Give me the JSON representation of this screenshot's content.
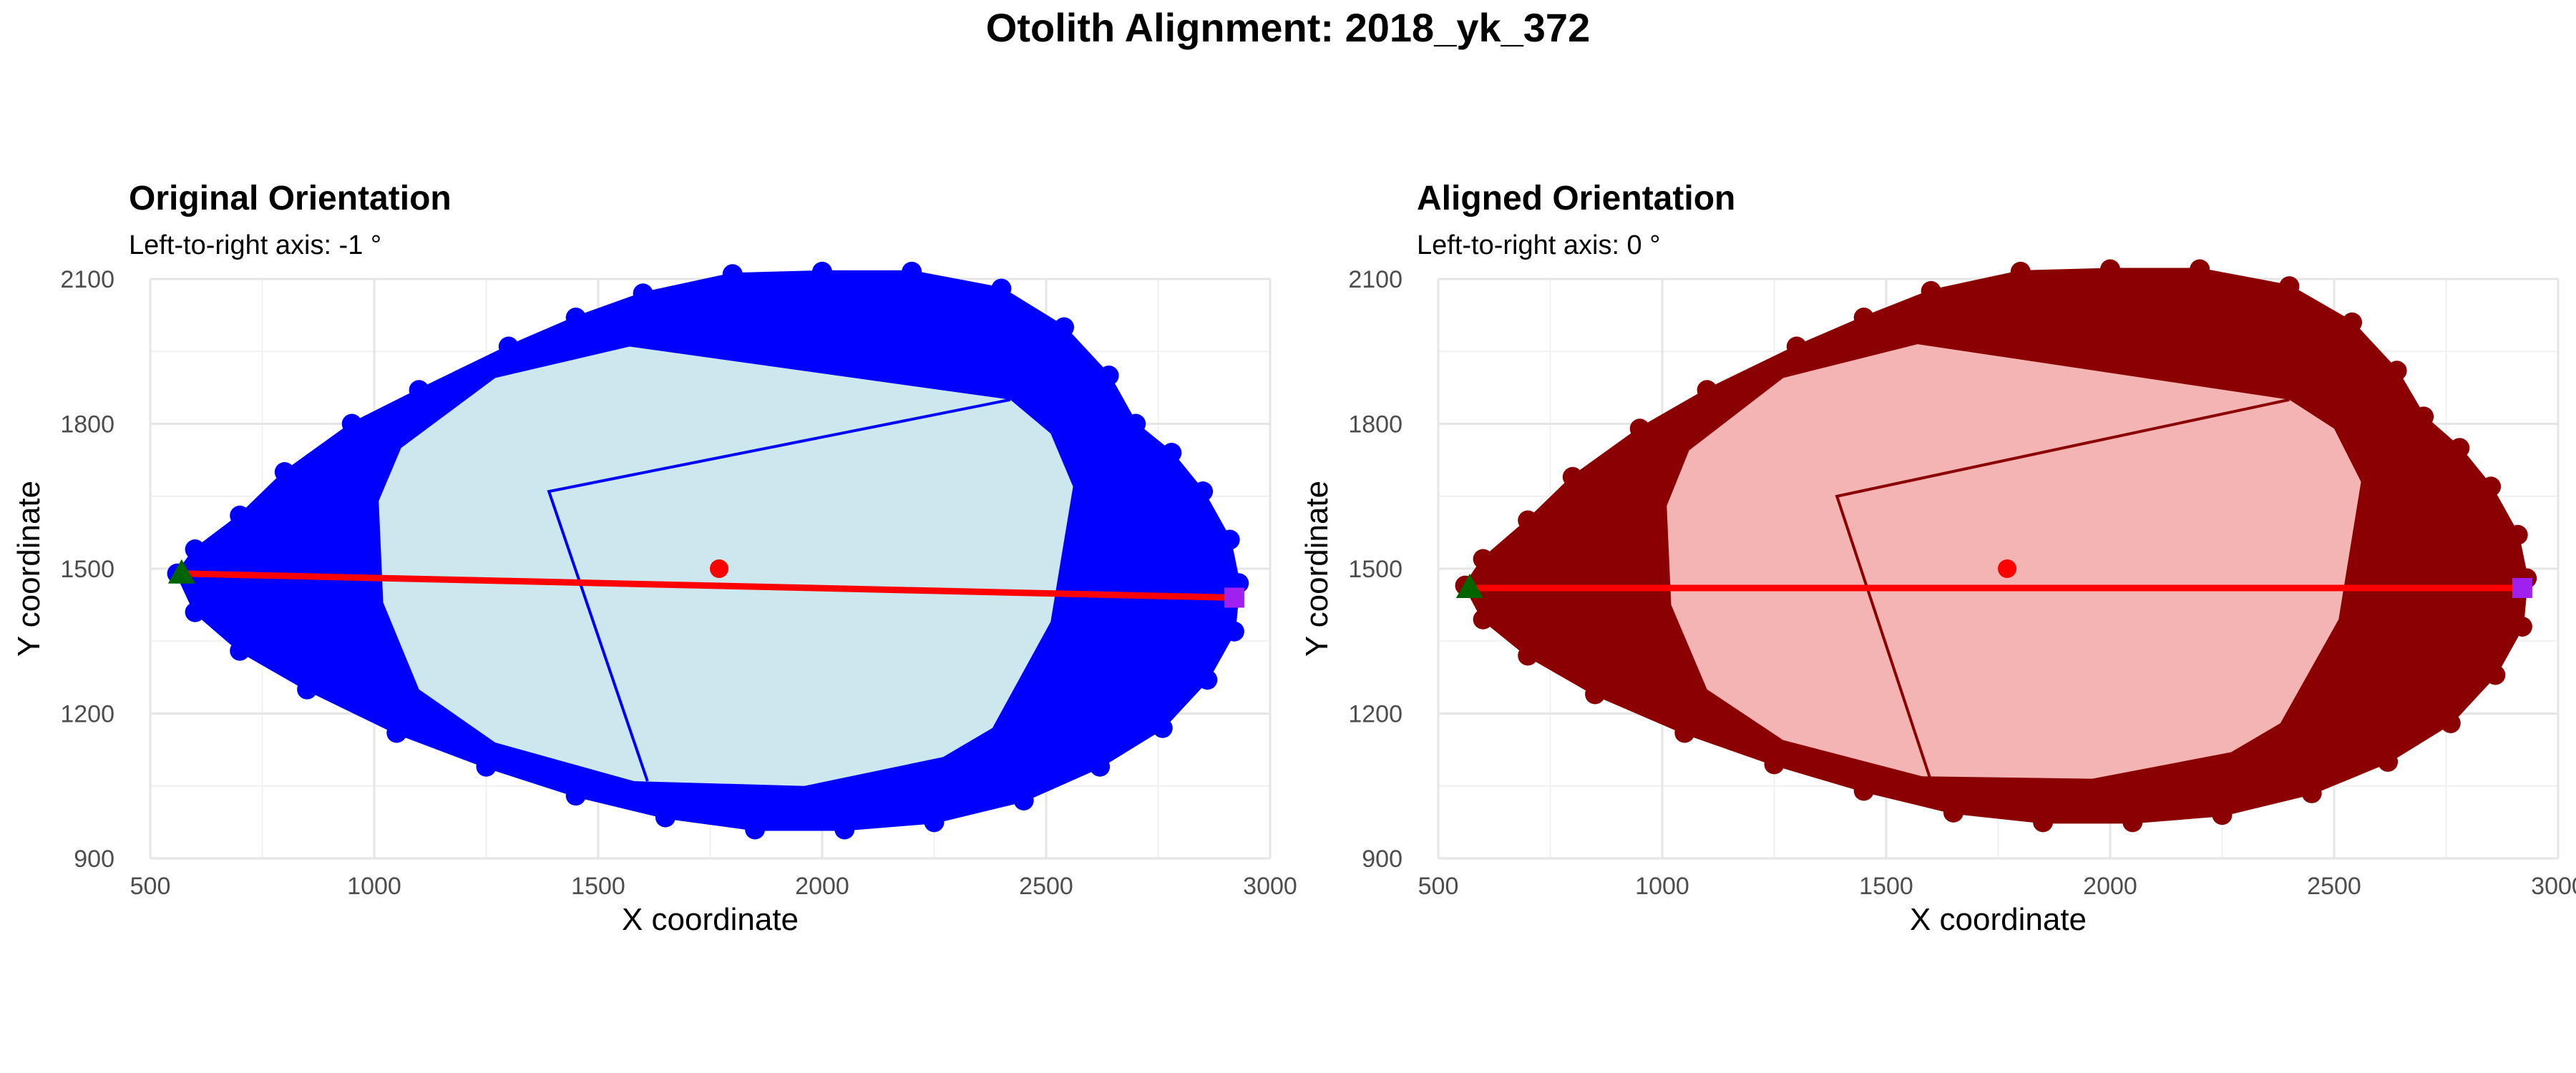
{
  "title": "Otolith Alignment: 2018_yk_372",
  "chart_data": [
    {
      "type": "scatter",
      "title": "Original Orientation",
      "subtitle": "Left-to-right axis: -1 °",
      "xlabel": "X coordinate",
      "ylabel": "Y coordinate",
      "xlim": [
        500,
        3000
      ],
      "ylim": [
        900,
        2100
      ],
      "x_ticks": [
        "500",
        "1000",
        "1500",
        "2000",
        "2500",
        "3000"
      ],
      "y_ticks": [
        "900",
        "1200",
        "1500",
        "1800",
        "2100"
      ],
      "grid": true,
      "colors": {
        "outline": "#0000ff",
        "fill": "#cde7ee",
        "inner_line": "#0000ff",
        "axis_line": "#ff0000",
        "centroid": "#ff0000",
        "left_marker": "#006400",
        "right_marker": "#a020f0"
      },
      "outer_shape": [
        [
          560,
          1490
        ],
        [
          600,
          1540
        ],
        [
          700,
          1610
        ],
        [
          800,
          1700
        ],
        [
          950,
          1800
        ],
        [
          1100,
          1870
        ],
        [
          1300,
          1960
        ],
        [
          1450,
          2020
        ],
        [
          1600,
          2070
        ],
        [
          1800,
          2110
        ],
        [
          2000,
          2115
        ],
        [
          2200,
          2115
        ],
        [
          2400,
          2080
        ],
        [
          2540,
          2000
        ],
        [
          2640,
          1900
        ],
        [
          2700,
          1800
        ],
        [
          2780,
          1740
        ],
        [
          2850,
          1660
        ],
        [
          2910,
          1560
        ],
        [
          2930,
          1470
        ],
        [
          2920,
          1370
        ],
        [
          2860,
          1270
        ],
        [
          2760,
          1170
        ],
        [
          2620,
          1090
        ],
        [
          2450,
          1020
        ],
        [
          2250,
          975
        ],
        [
          2050,
          960
        ],
        [
          1850,
          960
        ],
        [
          1650,
          985
        ],
        [
          1450,
          1030
        ],
        [
          1250,
          1090
        ],
        [
          1050,
          1160
        ],
        [
          850,
          1250
        ],
        [
          700,
          1330
        ],
        [
          600,
          1410
        ]
      ],
      "inner_shape": [
        [
          1010,
          1640
        ],
        [
          1060,
          1750
        ],
        [
          1270,
          1895
        ],
        [
          1570,
          1960
        ],
        [
          2420,
          1850
        ],
        [
          2510,
          1780
        ],
        [
          2560,
          1670
        ],
        [
          2510,
          1390
        ],
        [
          2380,
          1170
        ],
        [
          2270,
          1110
        ],
        [
          1960,
          1050
        ],
        [
          1580,
          1060
        ],
        [
          1270,
          1140
        ],
        [
          1100,
          1250
        ],
        [
          1020,
          1430
        ]
      ],
      "inner_line": [
        [
          1610,
          1060
        ],
        [
          1390,
          1660
        ],
        [
          2420,
          1850
        ]
      ],
      "axis_line": [
        [
          570,
          1490
        ],
        [
          2920,
          1440
        ]
      ],
      "centroid": [
        1770,
        1500
      ],
      "left_marker": [
        570,
        1490
      ],
      "right_marker": [
        2920,
        1440
      ]
    },
    {
      "type": "scatter",
      "title": "Aligned Orientation",
      "subtitle": "Left-to-right axis: 0 °",
      "xlabel": "X coordinate",
      "ylabel": "Y coordinate",
      "xlim": [
        500,
        3000
      ],
      "ylim": [
        900,
        2100
      ],
      "x_ticks": [
        "500",
        "1000",
        "1500",
        "2000",
        "2500",
        "3000"
      ],
      "y_ticks": [
        "900",
        "1200",
        "1500",
        "1800",
        "2100"
      ],
      "grid": true,
      "colors": {
        "outline": "#8b0000",
        "fill": "#f4b4b4",
        "inner_line": "#8b0000",
        "axis_line": "#ff0000",
        "centroid": "#ff0000",
        "left_marker": "#006400",
        "right_marker": "#a020f0"
      },
      "outer_shape": [
        [
          560,
          1465
        ],
        [
          600,
          1520
        ],
        [
          700,
          1600
        ],
        [
          800,
          1690
        ],
        [
          950,
          1790
        ],
        [
          1100,
          1870
        ],
        [
          1300,
          1960
        ],
        [
          1450,
          2020
        ],
        [
          1600,
          2075
        ],
        [
          1800,
          2115
        ],
        [
          2000,
          2120
        ],
        [
          2200,
          2120
        ],
        [
          2400,
          2085
        ],
        [
          2540,
          2010
        ],
        [
          2640,
          1910
        ],
        [
          2700,
          1815
        ],
        [
          2780,
          1750
        ],
        [
          2850,
          1670
        ],
        [
          2910,
          1570
        ],
        [
          2930,
          1480
        ],
        [
          2920,
          1380
        ],
        [
          2860,
          1280
        ],
        [
          2760,
          1180
        ],
        [
          2620,
          1100
        ],
        [
          2450,
          1035
        ],
        [
          2250,
          990
        ],
        [
          2050,
          975
        ],
        [
          1850,
          975
        ],
        [
          1650,
          995
        ],
        [
          1450,
          1040
        ],
        [
          1250,
          1095
        ],
        [
          1050,
          1160
        ],
        [
          850,
          1240
        ],
        [
          700,
          1320
        ],
        [
          600,
          1395
        ]
      ],
      "inner_shape": [
        [
          1010,
          1630
        ],
        [
          1060,
          1745
        ],
        [
          1270,
          1895
        ],
        [
          1570,
          1965
        ],
        [
          2400,
          1850
        ],
        [
          2500,
          1790
        ],
        [
          2560,
          1680
        ],
        [
          2510,
          1395
        ],
        [
          2380,
          1180
        ],
        [
          2270,
          1120
        ],
        [
          1960,
          1065
        ],
        [
          1580,
          1070
        ],
        [
          1270,
          1145
        ],
        [
          1100,
          1250
        ],
        [
          1020,
          1425
        ]
      ],
      "inner_line": [
        [
          1600,
          1060
        ],
        [
          1390,
          1650
        ],
        [
          2400,
          1850
        ]
      ],
      "axis_line": [
        [
          570,
          1460
        ],
        [
          2920,
          1460
        ]
      ],
      "centroid": [
        1770,
        1500
      ],
      "left_marker": [
        570,
        1460
      ],
      "right_marker": [
        2920,
        1460
      ]
    }
  ]
}
